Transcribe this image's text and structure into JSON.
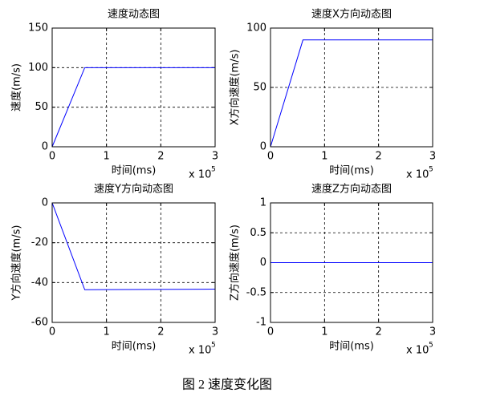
{
  "chart_data": [
    {
      "type": "line",
      "title": "速度动态图",
      "xlabel": "时间(ms)",
      "ylabel": "速度(m/s)",
      "x_scale_label": "x 10",
      "x_scale_exponent": "5",
      "x": [
        0,
        0.6,
        3
      ],
      "values": [
        0,
        100,
        100
      ],
      "color": "#0000ff",
      "xlim": [
        0,
        3
      ],
      "xticks": [
        0,
        1,
        2,
        3
      ],
      "ylim": [
        0,
        150
      ],
      "yticks": [
        0,
        50,
        100,
        150
      ],
      "grid": true
    },
    {
      "type": "line",
      "title": "速度X方向动态图",
      "xlabel": "时间(ms)",
      "ylabel": "X方向速度(m/s)",
      "x_scale_label": "x 10",
      "x_scale_exponent": "5",
      "x": [
        0,
        0.6,
        3
      ],
      "values": [
        0,
        90,
        90
      ],
      "color": "#0000ff",
      "xlim": [
        0,
        3
      ],
      "xticks": [
        0,
        1,
        2,
        3
      ],
      "ylim": [
        0,
        100
      ],
      "yticks": [
        0,
        50,
        100
      ],
      "grid": true
    },
    {
      "type": "line",
      "title": "速度Y方向动态图",
      "xlabel": "时间(ms)",
      "ylabel": "Y方向速度(m/s)",
      "x_scale_label": "x 10",
      "x_scale_exponent": "5",
      "x": [
        0,
        0.6,
        3
      ],
      "values": [
        0,
        -43.6,
        -43.3
      ],
      "color": "#0000ff",
      "xlim": [
        0,
        3
      ],
      "xticks": [
        0,
        1,
        2,
        3
      ],
      "ylim": [
        -60,
        0
      ],
      "yticks": [
        -60,
        -40,
        -20,
        0
      ],
      "grid": true
    },
    {
      "type": "line",
      "title": "速度Z方向动态图",
      "xlabel": "时间(ms)",
      "ylabel": "Z方向速度(m/s)",
      "x_scale_label": "x 10",
      "x_scale_exponent": "5",
      "x": [
        0,
        0.6,
        3
      ],
      "values": [
        0,
        0,
        0
      ],
      "color": "#0000ff",
      "xlim": [
        0,
        3
      ],
      "xticks": [
        0,
        1,
        2,
        3
      ],
      "ylim": [
        -1,
        1
      ],
      "yticks": [
        -1,
        -0.5,
        0,
        0.5,
        1
      ],
      "grid": true
    }
  ],
  "caption": "图 2 速度变化图"
}
